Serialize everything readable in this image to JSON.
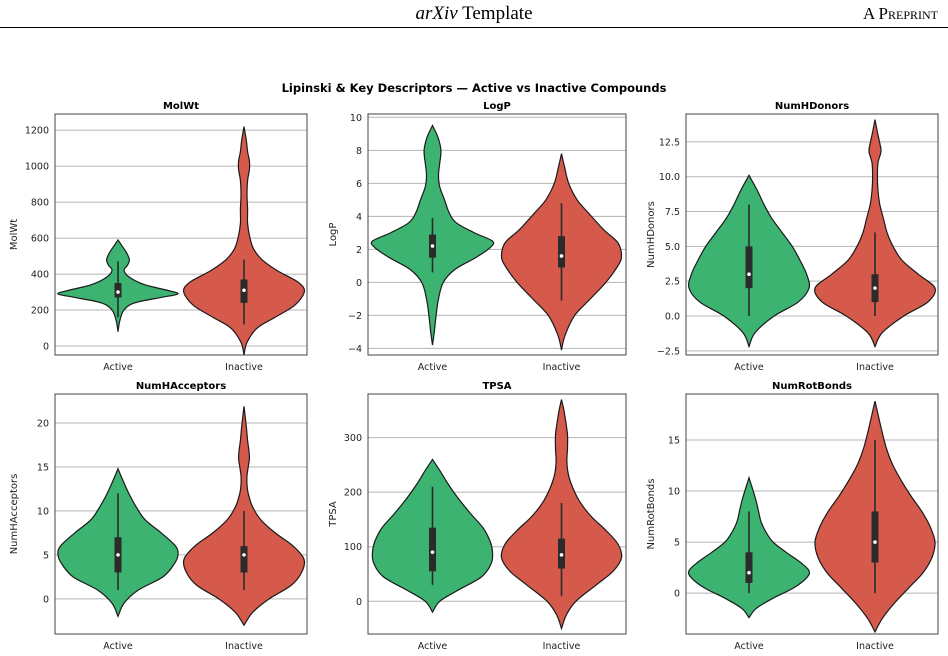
{
  "page_header": {
    "title_italic": "arXiv",
    "title_rest": " Template",
    "right": "A Preprint"
  },
  "colors": {
    "active": "#3cb371",
    "inactive": "#d55a4b",
    "grid": "#b5b5b5",
    "outline": "#1a1a1a"
  },
  "chart_data": {
    "type": "violin",
    "title": "Lipinski & Key Descriptors — Active vs Inactive Compounds",
    "categories": [
      "Active",
      "Inactive"
    ],
    "grid": "horizontal",
    "panels": [
      {
        "title": "MolWt",
        "ylabel": "MolWt",
        "ylim": [
          -50,
          1290
        ],
        "yticks": [
          0,
          200,
          400,
          600,
          800,
          1000,
          1200
        ],
        "series": [
          {
            "name": "Active",
            "q1": 270,
            "median": 300,
            "q3": 350,
            "whisker_low": 160,
            "whisker_high": 470,
            "profile": [
              [
                80,
                0
              ],
              [
                140,
                0.03
              ],
              [
                200,
                0.1
              ],
              [
                240,
                0.28
              ],
              [
                270,
                0.72
              ],
              [
                290,
                1
              ],
              [
                310,
                0.82
              ],
              [
                340,
                0.45
              ],
              [
                380,
                0.2
              ],
              [
                420,
                0.1
              ],
              [
                450,
                0.16
              ],
              [
                480,
                0.19
              ],
              [
                520,
                0.14
              ],
              [
                560,
                0.06
              ],
              [
                590,
                0
              ]
            ]
          },
          {
            "name": "Inactive",
            "q1": 240,
            "median": 310,
            "q3": 370,
            "whisker_low": 120,
            "whisker_high": 480,
            "profile": [
              [
                -50,
                0
              ],
              [
                20,
                0.05
              ],
              [
                100,
                0.22
              ],
              [
                160,
                0.52
              ],
              [
                220,
                0.82
              ],
              [
                280,
                0.98
              ],
              [
                320,
                1
              ],
              [
                360,
                0.88
              ],
              [
                420,
                0.55
              ],
              [
                480,
                0.3
              ],
              [
                540,
                0.16
              ],
              [
                600,
                0.1
              ],
              [
                680,
                0.06
              ],
              [
                760,
                0.06
              ],
              [
                840,
                0.05
              ],
              [
                920,
                0.06
              ],
              [
                980,
                0.09
              ],
              [
                1030,
                0.09
              ],
              [
                1080,
                0.06
              ],
              [
                1140,
                0.04
              ],
              [
                1220,
                0
              ]
            ]
          }
        ]
      },
      {
        "title": "LogP",
        "ylabel": "LogP",
        "ylim": [
          -4.4,
          10.2
        ],
        "yticks": [
          -4,
          -2,
          0,
          2,
          4,
          6,
          8,
          10
        ],
        "series": [
          {
            "name": "Active",
            "q1": 1.5,
            "median": 2.2,
            "q3": 2.9,
            "whisker_low": 0.6,
            "whisker_high": 3.9,
            "profile": [
              [
                -3.8,
                0
              ],
              [
                -3,
                0.03
              ],
              [
                -2,
                0.06
              ],
              [
                -1,
                0.1
              ],
              [
                0,
                0.18
              ],
              [
                0.8,
                0.38
              ],
              [
                1.5,
                0.72
              ],
              [
                2.1,
                0.96
              ],
              [
                2.5,
                1
              ],
              [
                3,
                0.7
              ],
              [
                3.6,
                0.4
              ],
              [
                4.2,
                0.28
              ],
              [
                5,
                0.2
              ],
              [
                5.8,
                0.12
              ],
              [
                6.5,
                0.1
              ],
              [
                7.2,
                0.12
              ],
              [
                8,
                0.14
              ],
              [
                8.8,
                0.09
              ],
              [
                9.5,
                0
              ]
            ]
          },
          {
            "name": "Inactive",
            "q1": 0.9,
            "median": 1.6,
            "q3": 2.8,
            "whisker_low": -1.1,
            "whisker_high": 4.8,
            "profile": [
              [
                -4.1,
                0
              ],
              [
                -3.2,
                0.06
              ],
              [
                -2,
                0.22
              ],
              [
                -1,
                0.48
              ],
              [
                0,
                0.74
              ],
              [
                1,
                0.94
              ],
              [
                1.6,
                1
              ],
              [
                2.4,
                0.94
              ],
              [
                3.2,
                0.7
              ],
              [
                4.2,
                0.45
              ],
              [
                5,
                0.26
              ],
              [
                6,
                0.12
              ],
              [
                7,
                0.05
              ],
              [
                7.8,
                0
              ]
            ]
          }
        ]
      },
      {
        "title": "NumHDonors",
        "ylabel": "NumHDonors",
        "ylim": [
          -2.8,
          14.5
        ],
        "yticks": [
          -2.5,
          0.0,
          2.5,
          5.0,
          7.5,
          10.0,
          12.5
        ],
        "series": [
          {
            "name": "Active",
            "q1": 2,
            "median": 3,
            "q3": 5,
            "whisker_low": 0,
            "whisker_high": 8,
            "profile": [
              [
                -2.2,
                0
              ],
              [
                -1.2,
                0.1
              ],
              [
                0,
                0.42
              ],
              [
                1,
                0.82
              ],
              [
                2,
                1
              ],
              [
                3,
                0.96
              ],
              [
                4,
                0.85
              ],
              [
                5,
                0.72
              ],
              [
                6,
                0.55
              ],
              [
                7,
                0.38
              ],
              [
                8,
                0.25
              ],
              [
                9,
                0.14
              ],
              [
                10.1,
                0
              ]
            ]
          },
          {
            "name": "Inactive",
            "q1": 1,
            "median": 2,
            "q3": 3,
            "whisker_low": 0,
            "whisker_high": 6,
            "profile": [
              [
                -2.2,
                0
              ],
              [
                -1.2,
                0.12
              ],
              [
                0,
                0.48
              ],
              [
                1,
                0.88
              ],
              [
                2,
                1
              ],
              [
                3,
                0.72
              ],
              [
                4,
                0.45
              ],
              [
                5,
                0.3
              ],
              [
                6,
                0.2
              ],
              [
                7,
                0.14
              ],
              [
                8,
                0.08
              ],
              [
                9,
                0.05
              ],
              [
                10,
                0.04
              ],
              [
                11,
                0.05
              ],
              [
                11.8,
                0.1
              ],
              [
                12.4,
                0.08
              ],
              [
                13.2,
                0.04
              ],
              [
                14.1,
                0
              ]
            ]
          }
        ]
      },
      {
        "title": "NumHAcceptors",
        "ylabel": "NumHAcceptors",
        "ylim": [
          -4,
          23.3
        ],
        "yticks": [
          0,
          5,
          10,
          15,
          20
        ],
        "series": [
          {
            "name": "Active",
            "q1": 3,
            "median": 5,
            "q3": 7,
            "whisker_low": 1,
            "whisker_high": 12,
            "profile": [
              [
                -2,
                0
              ],
              [
                -0.5,
                0.1
              ],
              [
                1,
                0.34
              ],
              [
                2.5,
                0.75
              ],
              [
                4,
                0.94
              ],
              [
                5,
                1
              ],
              [
                6,
                0.96
              ],
              [
                7.5,
                0.72
              ],
              [
                9,
                0.45
              ],
              [
                10.5,
                0.3
              ],
              [
                12,
                0.18
              ],
              [
                13.5,
                0.08
              ],
              [
                14.8,
                0
              ]
            ]
          },
          {
            "name": "Inactive",
            "q1": 3,
            "median": 5,
            "q3": 6,
            "whisker_low": 1,
            "whisker_high": 10,
            "profile": [
              [
                -3,
                0
              ],
              [
                -1.5,
                0.15
              ],
              [
                0,
                0.42
              ],
              [
                1.5,
                0.78
              ],
              [
                3,
                0.96
              ],
              [
                4.5,
                1
              ],
              [
                6,
                0.82
              ],
              [
                7.5,
                0.52
              ],
              [
                9,
                0.28
              ],
              [
                10.5,
                0.14
              ],
              [
                12,
                0.07
              ],
              [
                13,
                0.05
              ],
              [
                14,
                0.05
              ],
              [
                15,
                0.07
              ],
              [
                16,
                0.09
              ],
              [
                17,
                0.08
              ],
              [
                18,
                0.06
              ],
              [
                19.5,
                0.04
              ],
              [
                21.9,
                0
              ]
            ]
          }
        ]
      },
      {
        "title": "TPSA",
        "ylabel": "TPSA",
        "ylim": [
          -60,
          380
        ],
        "yticks": [
          0,
          100,
          200,
          300
        ],
        "series": [
          {
            "name": "Active",
            "q1": 55,
            "median": 90,
            "q3": 135,
            "whisker_low": 30,
            "whisker_high": 210,
            "profile": [
              [
                -20,
                0
              ],
              [
                0,
                0.12
              ],
              [
                20,
                0.42
              ],
              [
                45,
                0.82
              ],
              [
                70,
                0.98
              ],
              [
                90,
                1
              ],
              [
                110,
                0.96
              ],
              [
                135,
                0.84
              ],
              [
                160,
                0.64
              ],
              [
                190,
                0.42
              ],
              [
                215,
                0.26
              ],
              [
                240,
                0.12
              ],
              [
                260,
                0
              ]
            ]
          },
          {
            "name": "Inactive",
            "q1": 60,
            "median": 85,
            "q3": 115,
            "whisker_low": 10,
            "whisker_high": 180,
            "profile": [
              [
                -50,
                0
              ],
              [
                -25,
                0.08
              ],
              [
                0,
                0.24
              ],
              [
                30,
                0.58
              ],
              [
                55,
                0.86
              ],
              [
                80,
                1
              ],
              [
                105,
                0.94
              ],
              [
                130,
                0.74
              ],
              [
                155,
                0.5
              ],
              [
                180,
                0.32
              ],
              [
                205,
                0.2
              ],
              [
                230,
                0.12
              ],
              [
                255,
                0.09
              ],
              [
                280,
                0.1
              ],
              [
                305,
                0.1
              ],
              [
                330,
                0.07
              ],
              [
                350,
                0.04
              ],
              [
                370,
                0
              ]
            ]
          }
        ]
      },
      {
        "title": "NumRotBonds",
        "ylabel": "NumRotBonds",
        "ylim": [
          -4,
          19.5
        ],
        "yticks": [
          0,
          5,
          10,
          15
        ],
        "series": [
          {
            "name": "Active",
            "q1": 1,
            "median": 2,
            "q3": 4,
            "whisker_low": 0,
            "whisker_high": 8,
            "profile": [
              [
                -2.4,
                0
              ],
              [
                -1.5,
                0.12
              ],
              [
                -0.5,
                0.4
              ],
              [
                0.5,
                0.74
              ],
              [
                1.5,
                0.96
              ],
              [
                2.2,
                1
              ],
              [
                3,
                0.86
              ],
              [
                4,
                0.62
              ],
              [
                5,
                0.4
              ],
              [
                6,
                0.28
              ],
              [
                7,
                0.2
              ],
              [
                8,
                0.16
              ],
              [
                9,
                0.12
              ],
              [
                10,
                0.07
              ],
              [
                11.3,
                0
              ]
            ]
          },
          {
            "name": "Inactive",
            "q1": 3,
            "median": 5,
            "q3": 8,
            "whisker_low": 0,
            "whisker_high": 15,
            "profile": [
              [
                -3.8,
                0
              ],
              [
                -2.5,
                0.12
              ],
              [
                -1,
                0.32
              ],
              [
                0.5,
                0.56
              ],
              [
                2,
                0.8
              ],
              [
                3.5,
                0.95
              ],
              [
                5,
                1
              ],
              [
                6.5,
                0.92
              ],
              [
                8,
                0.78
              ],
              [
                9.5,
                0.6
              ],
              [
                11,
                0.44
              ],
              [
                12.5,
                0.3
              ],
              [
                14,
                0.2
              ],
              [
                15.5,
                0.13
              ],
              [
                17,
                0.07
              ],
              [
                18.8,
                0
              ]
            ]
          }
        ]
      }
    ]
  }
}
